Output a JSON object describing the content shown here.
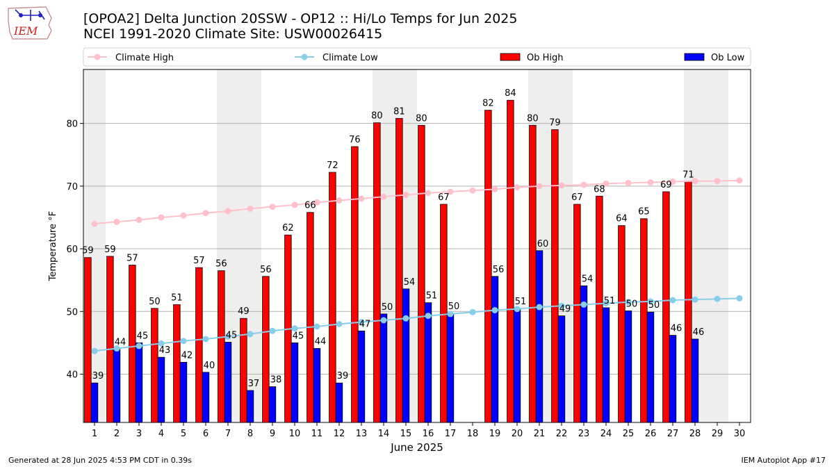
{
  "header": {
    "title_line1": "[OPOA2] Delta Junction 20SSW - OP12 :: Hi/Lo Temps for Jun 2025",
    "title_line2": "NCEI 1991-2020 Climate Site: USW00026415",
    "logo_text": "IEM"
  },
  "footer": {
    "generated": "Generated at 28 Jun 2025 4:53 PM CDT in 0.39s",
    "app": "IEM Autoplot App #17"
  },
  "colors": {
    "climate_high": "#ffc0cb",
    "climate_low": "#87ceeb",
    "ob_high": "#ff0000",
    "ob_low": "#0000ff",
    "weekend_shade": "#eeeeee",
    "grid": "#b0b0b0"
  },
  "chart_data": {
    "type": "bar",
    "title": "[OPOA2] Delta Junction 20SSW - OP12 :: Hi/Lo Temps for Jun 2025",
    "xlabel": "June 2025",
    "ylabel": "Temperature °F",
    "ylim": [
      32.3,
      88.6
    ],
    "yticks": [
      40,
      50,
      60,
      70,
      80
    ],
    "grid": true,
    "legend_position": "top",
    "categories": [
      1,
      2,
      3,
      4,
      5,
      6,
      7,
      8,
      9,
      10,
      11,
      12,
      13,
      14,
      15,
      16,
      17,
      18,
      19,
      20,
      21,
      22,
      23,
      24,
      25,
      26,
      27,
      28,
      29,
      30
    ],
    "weekend_days": [
      1,
      7,
      8,
      14,
      15,
      21,
      22,
      28,
      29
    ],
    "series": [
      {
        "name": "Climate High",
        "kind": "line",
        "values": [
          64.0,
          64.3,
          64.6,
          65.0,
          65.3,
          65.7,
          66.0,
          66.4,
          66.7,
          67.0,
          67.4,
          67.7,
          68.0,
          68.3,
          68.6,
          68.9,
          69.1,
          69.3,
          69.5,
          69.8,
          70.0,
          70.1,
          70.2,
          70.4,
          70.5,
          70.6,
          70.7,
          70.8,
          70.8,
          70.9
        ]
      },
      {
        "name": "Climate Low",
        "kind": "line",
        "values": [
          43.7,
          44.1,
          44.5,
          44.9,
          45.3,
          45.6,
          46.0,
          46.4,
          46.9,
          47.3,
          47.6,
          48.0,
          48.3,
          48.6,
          48.9,
          49.3,
          49.6,
          49.9,
          50.2,
          50.4,
          50.7,
          50.9,
          51.1,
          51.3,
          51.5,
          51.6,
          51.8,
          51.9,
          52.0,
          52.1
        ]
      },
      {
        "name": "Ob High",
        "kind": "bar",
        "values": [
          59,
          59,
          57,
          50,
          51,
          57,
          56,
          49,
          56,
          62,
          66,
          72,
          76,
          80,
          81,
          80,
          67,
          null,
          82,
          84,
          80,
          79,
          67,
          68,
          64,
          65,
          69,
          71,
          null,
          null
        ],
        "heights": [
          58.6,
          58.8,
          57.4,
          50.5,
          51.1,
          57.0,
          56.5,
          48.9,
          55.6,
          62.2,
          65.8,
          72.2,
          76.3,
          80.1,
          80.8,
          79.7,
          67.1,
          null,
          82.1,
          83.7,
          79.7,
          79.0,
          67.1,
          68.4,
          63.7,
          64.8,
          69.1,
          70.7,
          null,
          null
        ]
      },
      {
        "name": "Ob Low",
        "kind": "bar",
        "values": [
          39,
          44,
          45,
          43,
          42,
          40,
          45,
          37,
          38,
          45,
          44,
          39,
          47,
          50,
          54,
          51,
          50,
          null,
          56,
          51,
          60,
          49,
          54,
          51,
          50,
          50,
          46,
          46,
          null,
          null
        ],
        "heights": [
          38.6,
          44.0,
          45.0,
          42.7,
          41.9,
          40.3,
          45.1,
          37.4,
          38.0,
          45.0,
          44.1,
          38.6,
          46.9,
          49.6,
          53.6,
          51.4,
          49.7,
          null,
          55.6,
          50.5,
          59.7,
          49.3,
          54.1,
          50.6,
          50.1,
          49.9,
          46.2,
          45.6,
          null,
          null
        ]
      }
    ]
  }
}
